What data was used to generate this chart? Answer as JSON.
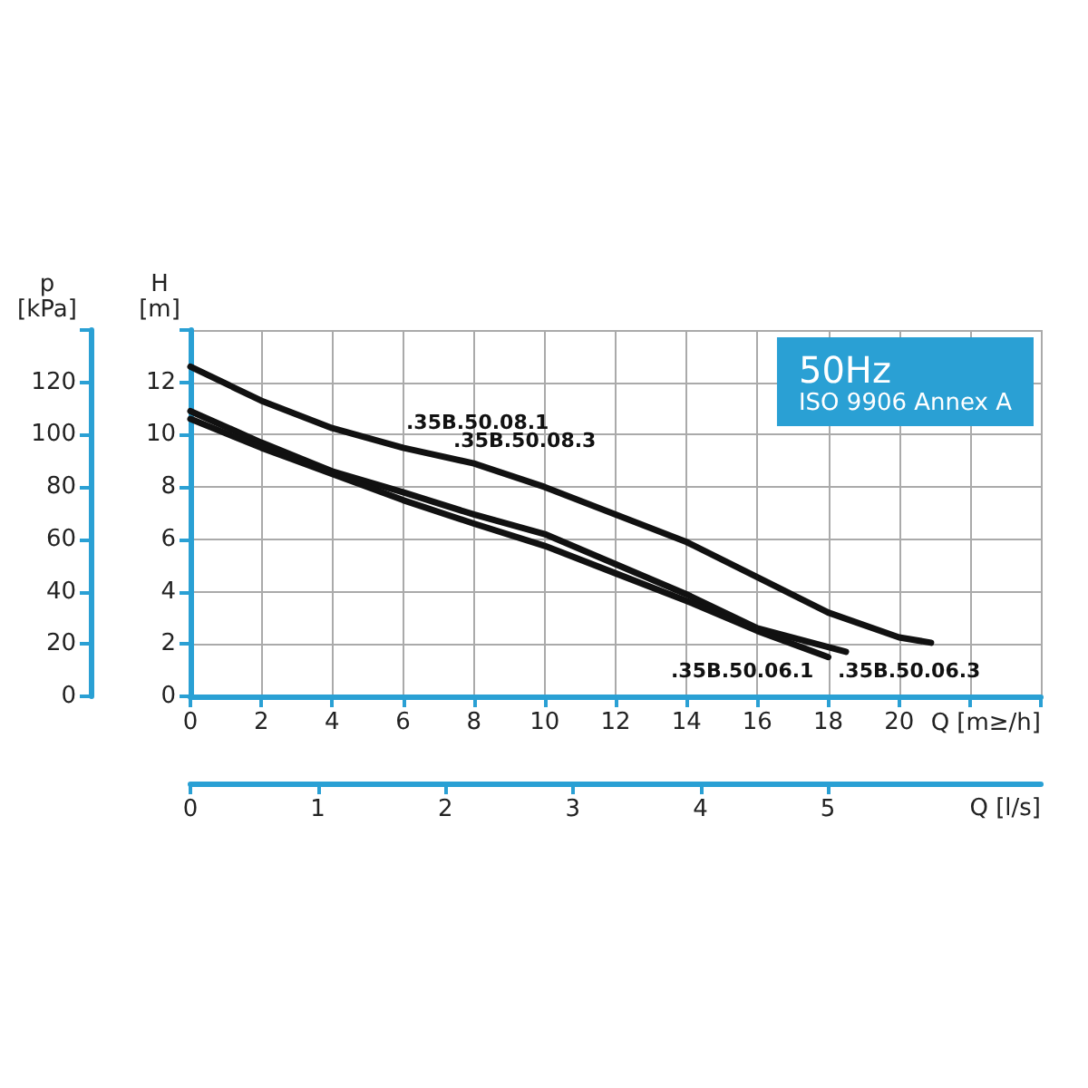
{
  "chart_data": {
    "type": "line",
    "title": "50Hz",
    "subtitle": "ISO 9906 Annex A",
    "xlabel": "Q [m≥/h]",
    "x2label": "Q [l/s]",
    "ylabel": "H\n[m]",
    "y2label": "p\n[kPa]",
    "xlim": [
      0,
      24
    ],
    "xticks": [
      0,
      2,
      4,
      6,
      8,
      10,
      12,
      14,
      16,
      18,
      20,
      {
        "value": 22,
        "label": null
      },
      {
        "value": 24,
        "label": null
      }
    ],
    "x2lim": [
      0,
      6.67
    ],
    "x2ticks": [
      0,
      1,
      2,
      3,
      4,
      5
    ],
    "ylim": [
      0,
      14
    ],
    "yticks": [
      0,
      2,
      4,
      6,
      8,
      10,
      12,
      {
        "value": 14,
        "label": null
      }
    ],
    "y2lim": [
      0,
      140
    ],
    "y2ticks": [
      0,
      20,
      40,
      60,
      80,
      100,
      120,
      {
        "value": 140,
        "label": null
      }
    ],
    "grid": true,
    "marker": "none",
    "line_style": "solid",
    "series": [
      {
        "color": "#111111",
        "x": [
          0,
          2,
          4,
          6,
          8,
          10,
          12,
          14,
          16,
          18,
          20,
          20.9
        ],
        "values": [
          12.6,
          11.3,
          10.25,
          9.5,
          8.9,
          8.0,
          6.95,
          5.9,
          4.55,
          3.2,
          2.25,
          2.05
        ]
      },
      {
        "color": "#111111",
        "x": [
          0,
          2,
          4,
          6,
          8,
          10,
          12,
          14,
          16,
          18.5
        ],
        "values": [
          10.9,
          9.7,
          8.6,
          7.8,
          6.95,
          6.2,
          5.05,
          3.9,
          2.6,
          1.7
        ]
      },
      {
        "color": "#111111",
        "x": [
          0,
          2,
          4,
          6,
          8,
          10,
          12,
          14,
          16,
          18.0
        ],
        "values": [
          10.6,
          9.5,
          8.5,
          7.5,
          6.6,
          5.75,
          4.7,
          3.65,
          2.5,
          1.5
        ]
      }
    ],
    "annotations": [
      ".35B.50.08.1",
      ".35B.50.08.3",
      ".35B.50.06.1",
      ".35B.50.06.3"
    ]
  }
}
